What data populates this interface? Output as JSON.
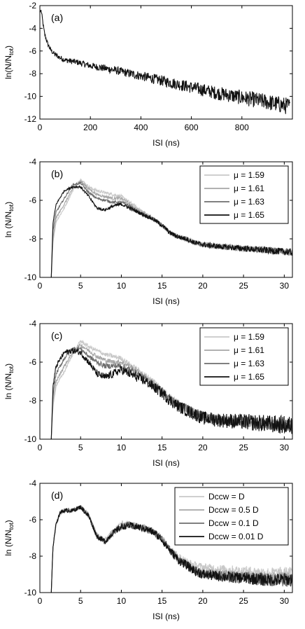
{
  "chart_data": [
    {
      "type": "line",
      "panel_label": "(a)",
      "xlabel": "ISI (ns)",
      "ylabel_main": "ln(N/N",
      "ylabel_sub": "tot",
      "ylabel_close": ")",
      "xlim": [
        0,
        1000
      ],
      "ylim": [
        -12,
        -2
      ],
      "xticks": [
        0,
        200,
        400,
        600,
        800
      ],
      "yticks": [
        -12,
        -10,
        -8,
        -6,
        -4,
        -2
      ],
      "legend": null,
      "series": [
        {
          "color": "#111111",
          "noise": 0.5,
          "x": [
            0,
            5,
            10,
            15,
            20,
            30,
            40,
            50,
            60,
            80,
            100,
            150,
            200,
            300,
            400,
            500,
            600,
            700,
            800,
            900,
            990
          ],
          "y": [
            -2.6,
            -2.4,
            -3.2,
            -4.0,
            -4.6,
            -5.3,
            -5.8,
            -6.1,
            -6.3,
            -6.6,
            -6.8,
            -7.0,
            -7.3,
            -7.7,
            -8.2,
            -8.7,
            -9.2,
            -9.7,
            -10.1,
            -10.5,
            -10.9
          ]
        }
      ]
    },
    {
      "type": "line",
      "panel_label": "(b)",
      "xlabel": "ISI (ns)",
      "ylabel_main": "ln (N/N",
      "ylabel_sub": "tot",
      "ylabel_close": ")",
      "xlim": [
        0,
        31
      ],
      "ylim": [
        -10,
        -4
      ],
      "xticks": [
        0,
        5,
        10,
        15,
        20,
        25,
        30
      ],
      "yticks": [
        -10,
        -8,
        -6,
        -4
      ],
      "legend": {
        "position": "top-right",
        "entries": [
          "μ = 1.59",
          "μ = 1.61",
          "μ = 1.63",
          "μ = 1.65"
        ]
      },
      "series": [
        {
          "name": "μ = 1.59",
          "color": "#c8c8c8",
          "noise": 0.12,
          "x": [
            1.4,
            1.6,
            2,
            3,
            4,
            5,
            6,
            7,
            8,
            9,
            10,
            11,
            12,
            13,
            14,
            15,
            16,
            17,
            18,
            19,
            20,
            22,
            25,
            28,
            31
          ],
          "y": [
            -10,
            -8.2,
            -7.1,
            -6.4,
            -5.5,
            -4.9,
            -5.3,
            -5.5,
            -5.6,
            -5.7,
            -5.8,
            -6.1,
            -6.4,
            -6.7,
            -7.0,
            -7.3,
            -7.7,
            -7.9,
            -8.0,
            -8.2,
            -8.3,
            -8.4,
            -8.5,
            -8.6,
            -8.7
          ]
        },
        {
          "name": "μ = 1.61",
          "color": "#a6a6a6",
          "noise": 0.12,
          "x": [
            1.4,
            1.6,
            2,
            3,
            4,
            5,
            6,
            7,
            8,
            9,
            10,
            11,
            12,
            13,
            14,
            15,
            16,
            17,
            18,
            19,
            20,
            22,
            25,
            28,
            31
          ],
          "y": [
            -10,
            -8.0,
            -6.9,
            -6.2,
            -5.4,
            -5.0,
            -5.4,
            -5.7,
            -5.8,
            -5.9,
            -5.9,
            -6.2,
            -6.5,
            -6.7,
            -7.0,
            -7.3,
            -7.7,
            -7.9,
            -8.0,
            -8.2,
            -8.3,
            -8.4,
            -8.5,
            -8.6,
            -8.7
          ]
        },
        {
          "name": "μ = 1.63",
          "color": "#6e6e6e",
          "noise": 0.12,
          "x": [
            1.4,
            1.6,
            2,
            3,
            4,
            5,
            6,
            7,
            8,
            9,
            10,
            11,
            12,
            13,
            14,
            15,
            16,
            17,
            18,
            19,
            20,
            22,
            25,
            28,
            31
          ],
          "y": [
            -10,
            -7.6,
            -6.6,
            -5.9,
            -5.2,
            -5.1,
            -5.6,
            -5.9,
            -6.0,
            -6.1,
            -6.1,
            -6.3,
            -6.6,
            -6.8,
            -7.0,
            -7.3,
            -7.7,
            -7.9,
            -8.0,
            -8.2,
            -8.3,
            -8.4,
            -8.5,
            -8.6,
            -8.7
          ]
        },
        {
          "name": "μ = 1.65",
          "color": "#111111",
          "noise": 0.12,
          "x": [
            1.4,
            1.6,
            2,
            3,
            4,
            5,
            6,
            7,
            8,
            9,
            10,
            11,
            12,
            13,
            14,
            15,
            16,
            17,
            18,
            19,
            20,
            22,
            25,
            28,
            31
          ],
          "y": [
            -10,
            -7.2,
            -6.2,
            -5.5,
            -5.3,
            -5.3,
            -5.8,
            -6.4,
            -6.5,
            -6.3,
            -6.2,
            -6.4,
            -6.6,
            -6.8,
            -7.0,
            -7.3,
            -7.7,
            -7.9,
            -8.0,
            -8.2,
            -8.3,
            -8.4,
            -8.5,
            -8.6,
            -8.7
          ]
        }
      ]
    },
    {
      "type": "line",
      "panel_label": "(c)",
      "xlabel": "ISI (ns)",
      "ylabel_main": "ln (N/N",
      "ylabel_sub": "tot",
      "ylabel_close": ")",
      "xlim": [
        0,
        31
      ],
      "ylim": [
        -10,
        -4
      ],
      "xticks": [
        0,
        5,
        10,
        15,
        20,
        25,
        30
      ],
      "yticks": [
        -10,
        -8,
        -6,
        -4
      ],
      "legend": {
        "position": "top-right",
        "entries": [
          "μ = 1.59",
          "μ = 1.61",
          "μ = 1.63",
          "μ = 1.65"
        ]
      },
      "series": [
        {
          "name": "μ = 1.59",
          "color": "#c8c8c8",
          "noise": 0.18,
          "x": [
            1.4,
            1.6,
            2,
            3,
            4,
            5,
            6,
            7,
            8,
            9,
            10,
            11,
            12,
            13,
            14,
            15,
            16,
            17,
            18,
            19,
            20,
            22,
            25,
            28,
            31
          ],
          "y": [
            -10,
            -8.4,
            -7.2,
            -6.5,
            -5.6,
            -4.9,
            -5.2,
            -5.4,
            -5.6,
            -5.7,
            -5.8,
            -6.1,
            -6.4,
            -6.7,
            -7.0,
            -7.4,
            -7.8,
            -8.1,
            -8.4,
            -8.6,
            -8.8,
            -9.0,
            -9.1,
            -9.2,
            -9.3
          ]
        },
        {
          "name": "μ = 1.61",
          "color": "#a6a6a6",
          "noise": 0.2,
          "x": [
            1.4,
            1.6,
            2,
            3,
            4,
            5,
            6,
            7,
            8,
            9,
            10,
            11,
            12,
            13,
            14,
            15,
            16,
            17,
            18,
            19,
            20,
            22,
            25,
            28,
            31
          ],
          "y": [
            -10,
            -8.1,
            -7.0,
            -6.2,
            -5.5,
            -5.1,
            -5.4,
            -5.7,
            -5.9,
            -6.0,
            -6.0,
            -6.2,
            -6.5,
            -6.8,
            -7.1,
            -7.5,
            -7.9,
            -8.2,
            -8.4,
            -8.6,
            -8.8,
            -9.0,
            -9.1,
            -9.2,
            -9.3
          ]
        },
        {
          "name": "μ = 1.63",
          "color": "#6e6e6e",
          "noise": 0.22,
          "x": [
            1.4,
            1.6,
            2,
            3,
            4,
            5,
            6,
            7,
            8,
            9,
            10,
            11,
            12,
            13,
            14,
            15,
            16,
            17,
            18,
            19,
            20,
            22,
            25,
            28,
            31
          ],
          "y": [
            -10,
            -7.7,
            -6.6,
            -5.8,
            -5.3,
            -5.3,
            -5.7,
            -6.0,
            -6.2,
            -6.2,
            -6.2,
            -6.4,
            -6.6,
            -6.9,
            -7.2,
            -7.5,
            -7.9,
            -8.2,
            -8.4,
            -8.6,
            -8.8,
            -9.0,
            -9.1,
            -9.2,
            -9.3
          ]
        },
        {
          "name": "μ = 1.65",
          "color": "#111111",
          "noise": 0.32,
          "x": [
            1.4,
            1.6,
            2,
            3,
            4,
            5,
            6,
            7,
            8,
            9,
            10,
            11,
            12,
            13,
            14,
            15,
            16,
            17,
            18,
            19,
            20,
            22,
            25,
            28,
            31
          ],
          "y": [
            -10,
            -7.3,
            -6.2,
            -5.5,
            -5.4,
            -5.5,
            -6.0,
            -6.6,
            -6.8,
            -6.6,
            -6.4,
            -6.6,
            -6.8,
            -7.0,
            -7.3,
            -7.6,
            -8.0,
            -8.3,
            -8.5,
            -8.7,
            -8.9,
            -9.0,
            -9.1,
            -9.2,
            -9.3
          ]
        }
      ]
    },
    {
      "type": "line",
      "panel_label": "(d)",
      "xlabel": "ISI (ns)",
      "ylabel_main": "ln (N/N",
      "ylabel_sub": "tot",
      "ylabel_close": ")",
      "xlim": [
        0,
        31
      ],
      "ylim": [
        -10,
        -4
      ],
      "xticks": [
        0,
        5,
        10,
        15,
        20,
        25,
        30
      ],
      "yticks": [
        -10,
        -8,
        -6,
        -4
      ],
      "legend": {
        "position": "top-right",
        "entries": [
          "Dccw = D",
          "Dccw = 0.5 D",
          "Dccw = 0.1 D",
          "Dccw = 0.01 D"
        ]
      },
      "series": [
        {
          "name": "Dccw = D",
          "color": "#c8c8c8",
          "noise": 0.2,
          "x": [
            1.4,
            1.6,
            2,
            2.5,
            3,
            4,
            5,
            6,
            7,
            8,
            9,
            10,
            11,
            12,
            13,
            14,
            15,
            16,
            17,
            18,
            19,
            20,
            22,
            25,
            28,
            31
          ],
          "y": [
            -10,
            -7.5,
            -6.2,
            -5.6,
            -5.5,
            -5.5,
            -5.3,
            -5.7,
            -6.8,
            -7.1,
            -6.6,
            -6.2,
            -6.2,
            -6.3,
            -6.4,
            -6.6,
            -7.0,
            -7.6,
            -8.0,
            -8.3,
            -8.5,
            -8.6,
            -8.7,
            -8.8,
            -8.9,
            -8.9
          ]
        },
        {
          "name": "Dccw = 0.5 D",
          "color": "#a6a6a6",
          "noise": 0.22,
          "x": [
            1.4,
            1.6,
            2,
            2.5,
            3,
            4,
            5,
            6,
            7,
            8,
            9,
            10,
            11,
            12,
            13,
            14,
            15,
            16,
            17,
            18,
            19,
            20,
            22,
            25,
            28,
            31
          ],
          "y": [
            -10,
            -7.5,
            -6.2,
            -5.6,
            -5.5,
            -5.5,
            -5.3,
            -5.8,
            -6.9,
            -7.2,
            -6.7,
            -6.3,
            -6.3,
            -6.4,
            -6.5,
            -6.7,
            -7.1,
            -7.7,
            -8.2,
            -8.5,
            -8.7,
            -8.9,
            -9.0,
            -9.1,
            -9.2,
            -9.2
          ]
        },
        {
          "name": "Dccw = 0.1 D",
          "color": "#6e6e6e",
          "noise": 0.24,
          "x": [
            1.4,
            1.6,
            2,
            2.5,
            3,
            4,
            5,
            6,
            7,
            8,
            9,
            10,
            11,
            12,
            13,
            14,
            15,
            16,
            17,
            18,
            19,
            20,
            22,
            25,
            28,
            31
          ],
          "y": [
            -10,
            -7.5,
            -6.2,
            -5.6,
            -5.5,
            -5.5,
            -5.3,
            -5.8,
            -6.9,
            -7.2,
            -6.7,
            -6.4,
            -6.3,
            -6.4,
            -6.5,
            -6.7,
            -7.1,
            -7.7,
            -8.2,
            -8.5,
            -8.8,
            -9.0,
            -9.1,
            -9.2,
            -9.3,
            -9.3
          ]
        },
        {
          "name": "Dccw = 0.01 D",
          "color": "#111111",
          "noise": 0.25,
          "x": [
            1.4,
            1.6,
            2,
            2.5,
            3,
            4,
            5,
            6,
            7,
            8,
            9,
            10,
            11,
            12,
            13,
            14,
            15,
            16,
            17,
            18,
            19,
            20,
            22,
            25,
            28,
            31
          ],
          "y": [
            -10,
            -7.5,
            -6.2,
            -5.6,
            -5.5,
            -5.5,
            -5.3,
            -5.8,
            -6.9,
            -7.2,
            -6.7,
            -6.4,
            -6.3,
            -6.4,
            -6.5,
            -6.7,
            -7.1,
            -7.7,
            -8.2,
            -8.5,
            -8.8,
            -9.0,
            -9.1,
            -9.2,
            -9.3,
            -9.3
          ]
        }
      ]
    }
  ]
}
